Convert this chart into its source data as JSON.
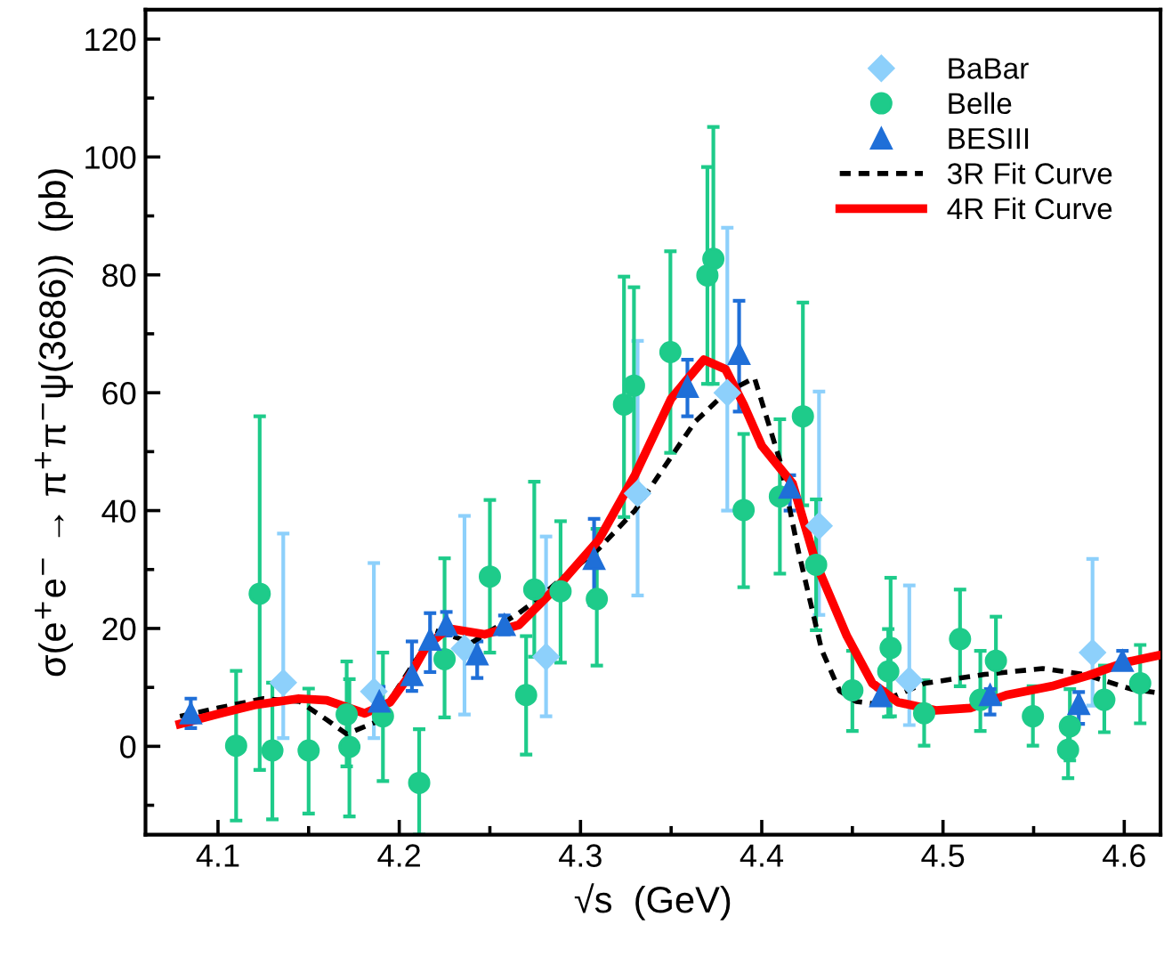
{
  "chart_data": {
    "type": "scatter",
    "xlabel": "√s  (GeV)",
    "ylabel": "σ(e$^{+}$e$^{−}$ → π$^{+}$π$^{−}$ψ(3686))  (pb)",
    "xlim": [
      4.06,
      4.62
    ],
    "ylim": [
      -15,
      125
    ],
    "xticks": [
      4.1,
      {
        "value": 4.15,
        "label": null
      },
      4.2,
      {
        "value": 4.25,
        "label": null
      },
      4.3,
      {
        "value": 4.35,
        "label": null
      },
      4.4,
      {
        "value": 4.45,
        "label": null
      },
      4.5,
      {
        "value": 4.55,
        "label": null
      },
      4.6
    ],
    "yticks": [
      {
        "value": -10,
        "label": null
      },
      0,
      {
        "value": 10,
        "label": null
      },
      20,
      {
        "value": 30,
        "label": null
      },
      40,
      {
        "value": 50,
        "label": null
      },
      60,
      {
        "value": 70,
        "label": null
      },
      80,
      {
        "value": 90,
        "label": null
      },
      100,
      {
        "value": 110,
        "label": null
      },
      120
    ],
    "grid": false,
    "legend": "top right",
    "series": [
      {
        "name": "BaBar",
        "marker": "diamond",
        "color": "#8dd0fb",
        "x": [
          4.136,
          4.186,
          4.236,
          4.281,
          4.3315,
          4.381,
          4.4316,
          4.4814,
          4.5825
        ],
        "values": [
          10.8,
          9.3,
          16.6,
          15.2,
          42.9,
          60,
          37.4,
          11.2,
          15.9
        ],
        "errors": [
          [
            1.4,
            36.1
          ],
          [
            1.4,
            31.1
          ],
          [
            5.4,
            39.1
          ],
          [
            5.1,
            35.6
          ],
          [
            25.6,
            68.8
          ],
          [
            40,
            88
          ],
          [
            22.3,
            60.2
          ],
          [
            3.6,
            27.3
          ],
          [
            6.9,
            31.8
          ]
        ]
      },
      {
        "name": "Belle",
        "marker": "circle",
        "color": "#1ecb8a",
        "x": [
          4.11,
          4.123,
          4.13,
          4.15,
          4.171,
          4.1725,
          4.191,
          4.211,
          4.225,
          4.25,
          4.27,
          4.2745,
          4.289,
          4.309,
          4.324,
          4.3295,
          4.3496,
          4.37,
          4.3733,
          4.39,
          4.41,
          4.4227,
          4.43,
          4.45,
          4.4698,
          4.4711,
          4.4896,
          4.5094,
          4.5206,
          4.5292,
          4.5496,
          4.569,
          4.57,
          4.589,
          4.6088
        ],
        "values": [
          0.1,
          25.9,
          -0.7,
          -0.7,
          5.4,
          -0.1,
          5.1,
          -6.2,
          14.8,
          28.8,
          8.7,
          26.6,
          26.3,
          25,
          58,
          61.2,
          66.9,
          79.9,
          82.7,
          40.1,
          42.4,
          56,
          30.8,
          9.5,
          12.7,
          16.7,
          5.6,
          18.2,
          7.9,
          14.5,
          5.1,
          -0.6,
          3.4,
          7.9,
          10.7
        ],
        "errors": [
          [
            -12.6,
            12.8
          ],
          [
            -4,
            56
          ],
          [
            -12.4,
            10.8
          ],
          [
            -11.4,
            9.8
          ],
          [
            -3.4,
            14.4
          ],
          [
            -11.9,
            11.4
          ],
          [
            -5.9,
            15.9
          ],
          [
            -15,
            2.9
          ],
          [
            4.9,
            31.9
          ],
          [
            15.9,
            41.8
          ],
          [
            -1.4,
            18.7
          ],
          [
            15.2,
            44.9
          ],
          [
            14.2,
            38.2
          ],
          [
            13.7,
            36.9
          ],
          [
            38.9,
            79.7
          ],
          [
            44.5,
            77.9
          ],
          [
            49.8,
            84
          ],
          [
            61.5,
            98.3
          ],
          [
            61.5,
            105.1
          ],
          [
            27,
            53
          ],
          [
            29.3,
            55.5
          ],
          [
            40.9,
            75.3
          ],
          [
            19.7,
            41.9
          ],
          [
            2.6,
            16.2
          ],
          [
            5,
            19.9
          ],
          [
            5.1,
            28.6
          ],
          [
            0.1,
            11.2
          ],
          [
            10.2,
            26.6
          ],
          [
            2.6,
            16.2
          ],
          [
            7.2,
            22
          ],
          [
            0.1,
            10.2
          ],
          [
            -5.4,
            4.1
          ],
          [
            -2.4,
            9.7
          ],
          [
            2.4,
            13.7
          ],
          [
            3.9,
            17.2
          ]
        ]
      },
      {
        "name": "BESIII",
        "marker": "triangle",
        "color": "#1f6fd8",
        "x": [
          4.085,
          4.189,
          4.207,
          4.217,
          4.226,
          4.243,
          4.258,
          4.3075,
          4.359,
          4.3875,
          4.4155,
          4.4656,
          4.526,
          4.5749,
          4.599
        ],
        "values": [
          5.6,
          7.6,
          12.1,
          18.1,
          20.6,
          15.6,
          20.6,
          31.8,
          61,
          66.6,
          43.9,
          8.5,
          8.7,
          7.2,
          14.5
        ],
        "errors": [
          [
            3.1,
            8.1
          ],
          [
            4.2,
            10.1
          ],
          [
            9.4,
            17.8
          ],
          [
            12.6,
            22.6
          ],
          [
            18.8,
            22.8
          ],
          [
            11.6,
            17.8
          ],
          [
            19,
            22.2
          ],
          [
            24,
            38.6
          ],
          [
            56,
            65.6
          ],
          [
            56.8,
            75.6
          ],
          [
            40,
            46
          ],
          [
            7.2,
            9.7
          ],
          [
            5.4,
            9.7
          ],
          [
            3.8,
            9.2
          ],
          [
            13.2,
            16.2
          ]
        ]
      },
      {
        "name": "3R Fit Curve",
        "type": "line",
        "line_style": "dashed",
        "color": "#000000",
        "x": [
          4.079,
          4.1,
          4.125,
          4.145,
          4.16,
          4.171,
          4.187,
          4.207,
          4.22,
          4.24,
          4.266,
          4.276,
          4.289,
          4.31,
          4.33,
          4.363,
          4.38,
          4.396,
          4.41,
          4.42,
          4.433,
          4.443,
          4.452,
          4.463,
          4.49,
          4.523,
          4.555,
          4.578,
          4.604,
          4.62
        ],
        "values": [
          5.1,
          6.5,
          8.1,
          7.6,
          4.5,
          2.1,
          4.1,
          13.6,
          19.6,
          17.6,
          22.6,
          24.9,
          28.3,
          33.5,
          40,
          55,
          60,
          62.5,
          48.5,
          33.4,
          16.4,
          9.4,
          7.6,
          7.2,
          10.7,
          12.2,
          13.2,
          12.2,
          9.7,
          9
        ]
      },
      {
        "name": "4R Fit Curve",
        "type": "line",
        "line_style": "solid",
        "color": "#ff0000",
        "x": [
          4.079,
          4.1,
          4.12,
          4.1445,
          4.16,
          4.181,
          4.195,
          4.207,
          4.215,
          4.227,
          4.247,
          4.266,
          4.29,
          4.31,
          4.33,
          4.35,
          4.368,
          4.38,
          4.39,
          4.4,
          4.417,
          4.43,
          4.447,
          4.461,
          4.475,
          4.496,
          4.515,
          4.535,
          4.56,
          4.58,
          4.6,
          4.62
        ],
        "values": [
          3.8,
          5.5,
          7,
          8.1,
          7.8,
          5.6,
          7.5,
          12.6,
          17,
          20,
          19,
          20.6,
          28,
          35,
          46,
          59,
          65.6,
          64,
          58,
          51,
          44.6,
          31,
          18.7,
          10.7,
          7.5,
          6.1,
          6.5,
          8.7,
          10.2,
          12,
          14.2,
          15.5
        ]
      }
    ]
  }
}
